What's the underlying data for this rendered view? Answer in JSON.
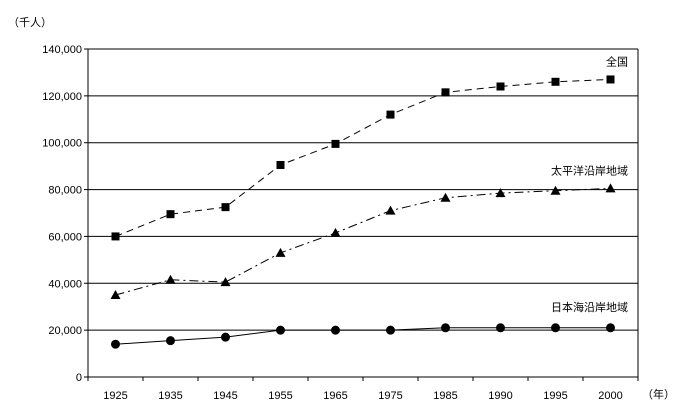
{
  "chart_data": {
    "type": "line",
    "y_unit": "（千人）",
    "x_unit": "（年）",
    "categories": [
      "1925",
      "1935",
      "1945",
      "1955",
      "1965",
      "1975",
      "1985",
      "1990",
      "1995",
      "2000"
    ],
    "ylim": [
      0,
      140000
    ],
    "yticks": [
      "0",
      "20,000",
      "40,000",
      "60,000",
      "80,000",
      "100,000",
      "120,000",
      "140,000"
    ],
    "grid": true,
    "series": [
      {
        "name": "全国",
        "marker": "square",
        "dash": "dashed",
        "values": [
          60000,
          69500,
          72500,
          90500,
          99500,
          112000,
          121500,
          124000,
          126000,
          127000
        ]
      },
      {
        "name": "太平洋沿岸地域",
        "marker": "triangle",
        "dash": "dashdot",
        "values": [
          35000,
          41500,
          40500,
          53000,
          61500,
          71000,
          76500,
          78500,
          79500,
          80500
        ]
      },
      {
        "name": "日本海沿岸地域",
        "marker": "circle",
        "dash": "solid",
        "values": [
          14000,
          15500,
          17000,
          20000,
          20000,
          20000,
          21000,
          21000,
          21000,
          21000
        ]
      }
    ]
  }
}
